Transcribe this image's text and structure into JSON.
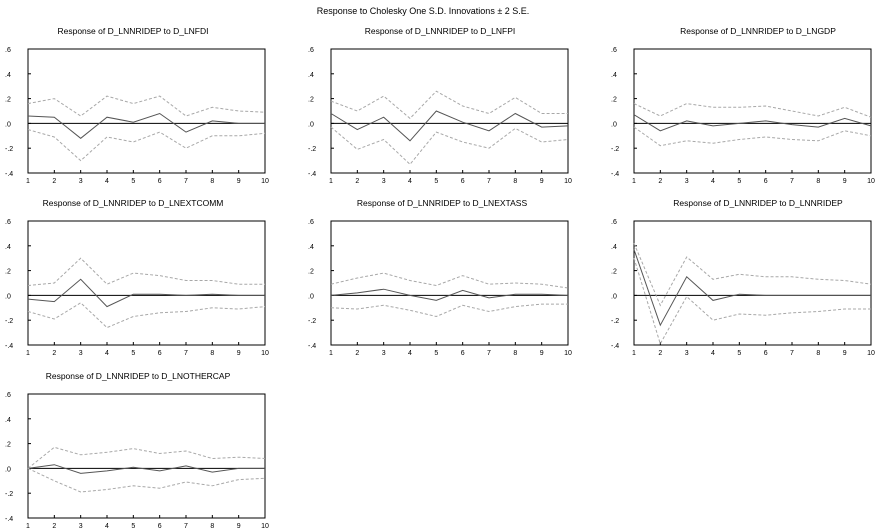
{
  "figure_title": "Response to Cholesky One S.D. Innovations ± 2 S.E.",
  "colors": {
    "response": "#555555",
    "band": "#a8a8a8",
    "zero": "#000000",
    "axis": "#000000"
  },
  "chart_data": [
    {
      "type": "line",
      "title": "Response of D_LNNRIDEP to D_LNFDI",
      "x": [
        1,
        2,
        3,
        4,
        5,
        6,
        7,
        8,
        9,
        10
      ],
      "ylim": [
        -0.4,
        0.6
      ],
      "y_ticks": [
        ".6",
        ".4",
        ".2",
        ".0",
        "-.2",
        "-.4"
      ],
      "series": [
        {
          "role": "response",
          "values": [
            0.06,
            0.05,
            -0.12,
            0.05,
            0.01,
            0.08,
            -0.07,
            0.02,
            0.0,
            0.0
          ]
        },
        {
          "role": "upper",
          "values": [
            0.16,
            0.2,
            0.06,
            0.22,
            0.16,
            0.22,
            0.06,
            0.13,
            0.1,
            0.09
          ]
        },
        {
          "role": "lower",
          "values": [
            -0.05,
            -0.11,
            -0.3,
            -0.11,
            -0.15,
            -0.07,
            -0.2,
            -0.1,
            -0.1,
            -0.08
          ]
        }
      ]
    },
    {
      "type": "line",
      "title": "Response of D_LNNRIDEP to D_LNFPI",
      "x": [
        1,
        2,
        3,
        4,
        5,
        6,
        7,
        8,
        9,
        10
      ],
      "ylim": [
        -0.4,
        0.6
      ],
      "y_ticks": [
        ".6",
        ".4",
        ".2",
        ".0",
        "-.2",
        "-.4"
      ],
      "series": [
        {
          "role": "response",
          "values": [
            0.08,
            -0.05,
            0.05,
            -0.14,
            0.1,
            0.01,
            -0.06,
            0.08,
            -0.03,
            -0.02
          ]
        },
        {
          "role": "upper",
          "values": [
            0.18,
            0.1,
            0.22,
            0.04,
            0.26,
            0.14,
            0.08,
            0.21,
            0.08,
            0.08
          ]
        },
        {
          "role": "lower",
          "values": [
            -0.03,
            -0.21,
            -0.13,
            -0.33,
            -0.07,
            -0.15,
            -0.2,
            -0.04,
            -0.15,
            -0.13
          ]
        }
      ]
    },
    {
      "type": "line",
      "title": "Response of D_LNNRIDEP to D_LNGDP",
      "x": [
        1,
        2,
        3,
        4,
        5,
        6,
        7,
        8,
        9,
        10
      ],
      "ylim": [
        -0.4,
        0.6
      ],
      "y_ticks": [
        ".6",
        ".4",
        ".2",
        ".0",
        "-.2",
        "-.4"
      ],
      "series": [
        {
          "role": "response",
          "values": [
            0.07,
            -0.06,
            0.02,
            -0.02,
            0.0,
            0.02,
            -0.01,
            -0.03,
            0.04,
            -0.02
          ]
        },
        {
          "role": "upper",
          "values": [
            0.16,
            0.06,
            0.16,
            0.13,
            0.13,
            0.14,
            0.1,
            0.06,
            0.13,
            0.05
          ]
        },
        {
          "role": "lower",
          "values": [
            -0.03,
            -0.18,
            -0.14,
            -0.16,
            -0.13,
            -0.11,
            -0.13,
            -0.14,
            -0.06,
            -0.1
          ]
        }
      ]
    },
    {
      "type": "line",
      "title": "Response of D_LNNRIDEP to D_LNEXTCOMM",
      "x": [
        1,
        2,
        3,
        4,
        5,
        6,
        7,
        8,
        9,
        10
      ],
      "ylim": [
        -0.4,
        0.6
      ],
      "y_ticks": [
        ".6",
        ".4",
        ".2",
        ".0",
        "-.2",
        "-.4"
      ],
      "series": [
        {
          "role": "response",
          "values": [
            -0.03,
            -0.05,
            0.13,
            -0.09,
            0.01,
            0.01,
            0.0,
            0.01,
            0.0,
            0.0
          ]
        },
        {
          "role": "upper",
          "values": [
            0.08,
            0.1,
            0.3,
            0.09,
            0.18,
            0.16,
            0.12,
            0.12,
            0.09,
            0.09
          ]
        },
        {
          "role": "lower",
          "values": [
            -0.13,
            -0.19,
            -0.06,
            -0.26,
            -0.17,
            -0.14,
            -0.13,
            -0.1,
            -0.11,
            -0.09
          ]
        }
      ]
    },
    {
      "type": "line",
      "title": "Response of D_LNNRIDEP to D_LNEXTASS",
      "x": [
        1,
        2,
        3,
        4,
        5,
        6,
        7,
        8,
        9,
        10
      ],
      "ylim": [
        -0.4,
        0.6
      ],
      "y_ticks": [
        ".6",
        ".4",
        ".2",
        ".0",
        "-.2",
        "-.4"
      ],
      "series": [
        {
          "role": "response",
          "values": [
            0.0,
            0.02,
            0.05,
            0.0,
            -0.04,
            0.04,
            -0.02,
            0.01,
            0.01,
            0.0
          ]
        },
        {
          "role": "upper",
          "values": [
            0.09,
            0.14,
            0.18,
            0.12,
            0.08,
            0.16,
            0.09,
            0.1,
            0.09,
            0.06
          ]
        },
        {
          "role": "lower",
          "values": [
            -0.1,
            -0.11,
            -0.08,
            -0.12,
            -0.17,
            -0.08,
            -0.13,
            -0.09,
            -0.07,
            -0.07
          ]
        }
      ]
    },
    {
      "type": "line",
      "title": "Response of D_LNNRIDEP to D_LNNRIDEP",
      "x": [
        1,
        2,
        3,
        4,
        5,
        6,
        7,
        8,
        9,
        10
      ],
      "ylim": [
        -0.4,
        0.6
      ],
      "y_ticks": [
        ".6",
        ".4",
        ".2",
        ".0",
        "-.2",
        "-.4"
      ],
      "series": [
        {
          "role": "response",
          "values": [
            0.37,
            -0.24,
            0.15,
            -0.04,
            0.01,
            0.0,
            0.0,
            0.0,
            0.0,
            0.0
          ]
        },
        {
          "role": "upper",
          "values": [
            0.42,
            -0.08,
            0.31,
            0.13,
            0.17,
            0.15,
            0.15,
            0.13,
            0.12,
            0.09
          ]
        },
        {
          "role": "lower",
          "values": [
            0.3,
            -0.39,
            -0.01,
            -0.2,
            -0.15,
            -0.16,
            -0.14,
            -0.13,
            -0.11,
            -0.11
          ]
        }
      ]
    },
    {
      "type": "line",
      "title": "Response of D_LNNRIDEP to D_LNOTHERCAP",
      "x": [
        1,
        2,
        3,
        4,
        5,
        6,
        7,
        8,
        9,
        10
      ],
      "ylim": [
        -0.4,
        0.6
      ],
      "y_ticks": [
        ".6",
        ".4",
        ".2",
        ".0",
        "-.2",
        "-.4"
      ],
      "series": [
        {
          "role": "response",
          "values": [
            0.0,
            0.03,
            -0.04,
            -0.02,
            0.01,
            -0.02,
            0.02,
            -0.03,
            0.0,
            0.0
          ]
        },
        {
          "role": "upper",
          "values": [
            0.0,
            0.17,
            0.11,
            0.13,
            0.16,
            0.12,
            0.14,
            0.08,
            0.09,
            0.08
          ]
        },
        {
          "role": "lower",
          "values": [
            0.0,
            -0.1,
            -0.19,
            -0.17,
            -0.14,
            -0.16,
            -0.11,
            -0.14,
            -0.09,
            -0.08
          ]
        }
      ]
    }
  ]
}
